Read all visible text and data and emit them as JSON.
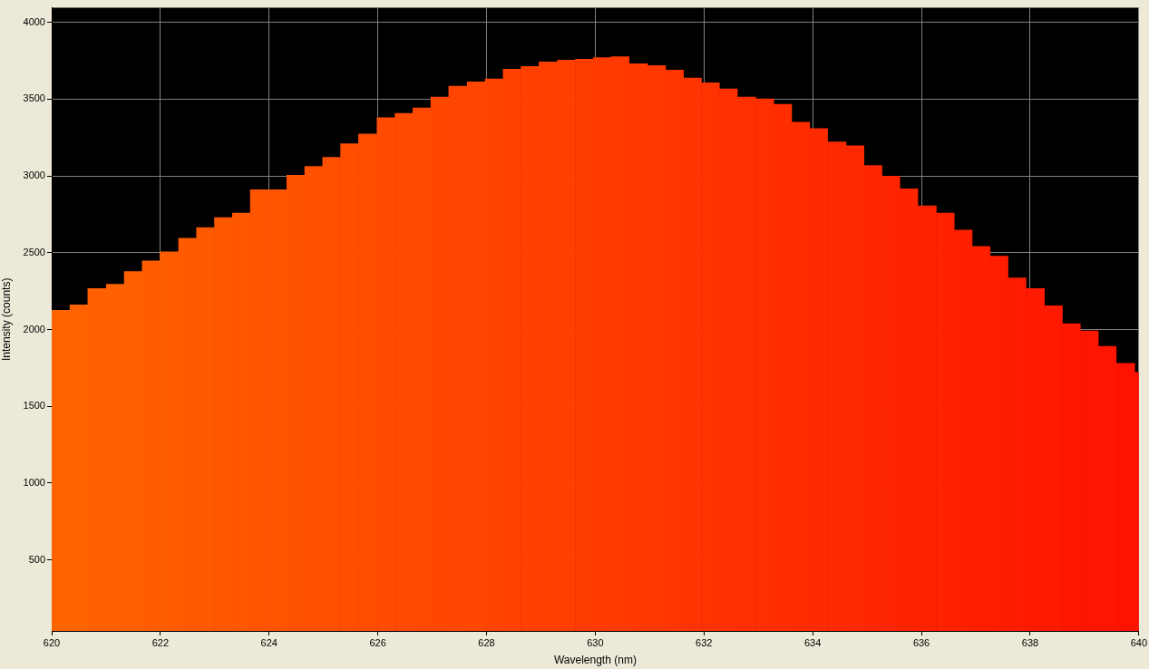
{
  "chart_data": {
    "type": "histogram",
    "xlabel": "Wavelength (nm)",
    "ylabel": "Intensity (counts)",
    "bins": [
      620,
      620.33,
      620.66,
      621,
      621.33,
      621.66,
      621.99,
      622.33,
      622.66,
      622.99,
      623.32,
      623.65,
      623.99,
      624.32,
      624.65,
      624.98,
      625.31,
      625.64,
      625.98,
      626.31,
      626.64,
      626.97,
      627.3,
      627.64,
      627.97,
      628.3,
      628.63,
      628.96,
      629.3,
      629.63,
      629.96,
      630.29,
      630.62,
      630.96,
      631.29,
      631.62,
      631.95,
      632.28,
      632.61,
      632.95,
      633.28,
      633.61,
      633.94,
      634.27,
      634.61,
      634.94,
      635.27,
      635.6,
      635.93,
      636.27,
      636.6,
      636.93,
      637.26,
      637.59,
      637.92,
      638.26,
      638.59,
      638.92,
      639.25,
      639.58,
      639.92,
      640
    ],
    "values": [
      2127,
      2162,
      2268,
      2297,
      2379,
      2449,
      2508,
      2596,
      2666,
      2731,
      2760,
      2912,
      2912,
      3006,
      3064,
      3123,
      3211,
      3275,
      3381,
      3410,
      3445,
      3516,
      3586,
      3615,
      3633,
      3697,
      3715,
      3744,
      3756,
      3762,
      3773,
      3779,
      3732,
      3721,
      3691,
      3639,
      3609,
      3568,
      3516,
      3504,
      3469,
      3352,
      3311,
      3223,
      3199,
      3070,
      3000,
      2918,
      2807,
      2760,
      2649,
      2543,
      2479,
      2338,
      2268,
      2156,
      2039,
      1992,
      1892,
      1781,
      1723
    ],
    "colors": [
      "#ff6400",
      "#ff6300",
      "#ff6100",
      "#ff6000",
      "#ff5f00",
      "#ff5d00",
      "#ff5c00",
      "#ff5a00",
      "#ff5900",
      "#ff5800",
      "#ff5600",
      "#ff5500",
      "#ff5400",
      "#ff5200",
      "#ff5100",
      "#ff5000",
      "#ff4e00",
      "#ff4d00",
      "#ff4b00",
      "#ff4a00",
      "#ff4900",
      "#ff4700",
      "#ff4600",
      "#ff4500",
      "#ff4300",
      "#ff4200",
      "#ff4000",
      "#ff3f00",
      "#ff3e00",
      "#ff3c00",
      "#ff3b00",
      "#ff3a00",
      "#ff3800",
      "#ff3700",
      "#ff3600",
      "#ff3400",
      "#ff3300",
      "#ff3100",
      "#ff3000",
      "#ff2f00",
      "#ff2d00",
      "#ff2c00",
      "#ff2b00",
      "#ff2900",
      "#ff2800",
      "#ff2600",
      "#ff2500",
      "#ff2400",
      "#ff2200",
      "#ff2100",
      "#ff2000",
      "#ff1e00",
      "#ff1d00",
      "#ff1c00",
      "#ff1a00",
      "#ff1900",
      "#ff1700",
      "#ff1600",
      "#ff1500",
      "#ff1300",
      "#ff1200"
    ],
    "xlim": [
      620,
      640
    ],
    "xticks": [
      620,
      622,
      624,
      626,
      628,
      630,
      632,
      634,
      636,
      638,
      640
    ],
    "ylim": [
      37,
      4095
    ],
    "yticks": [
      500,
      1000,
      1500,
      2000,
      2500,
      3000,
      3500,
      4000
    ],
    "grid": true
  }
}
